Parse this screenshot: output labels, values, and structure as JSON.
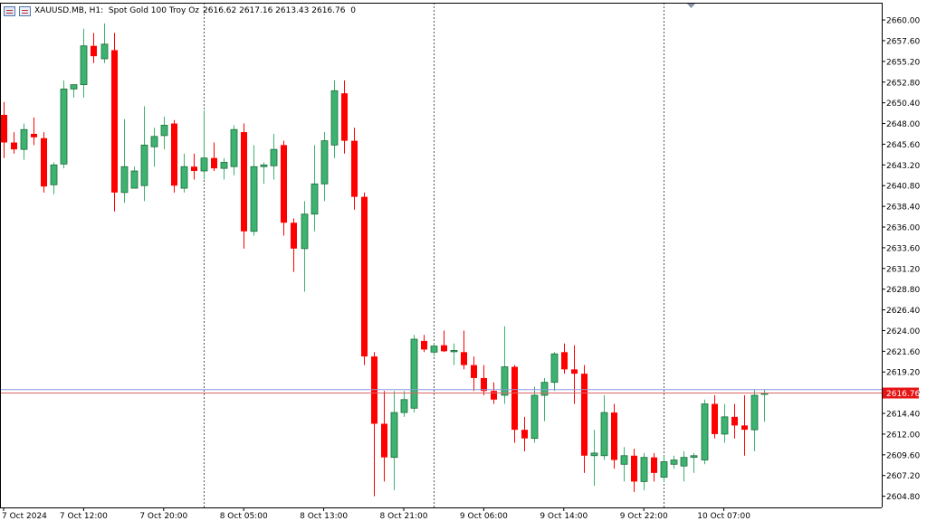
{
  "header": {
    "symbol": "XAUUSD.MB, H1:  Spot Gold 100 Troy Oz",
    "ohlc": "2616.62 2617.16 2613.43 2616.76  0"
  },
  "colors": {
    "bull": "#3cb371",
    "bear": "#ff0000",
    "bid_line": "#8899dd",
    "ask_line": "#dd6666",
    "price_tag_bg": "#e61414",
    "separator": "#555555",
    "axis": "#000000"
  },
  "icons": [
    "chart-window-icon",
    "chart-type-icon"
  ],
  "chart_data": {
    "type": "candlestick",
    "timeframe": "H1",
    "symbol": "XAUUSD.MB",
    "ylim": [
      2603.5,
      2662.0
    ],
    "y_ticks": [
      "2660.00",
      "2657.60",
      "2655.20",
      "2652.80",
      "2650.40",
      "2648.00",
      "2645.60",
      "2643.20",
      "2640.80",
      "2638.40",
      "2636.00",
      "2633.60",
      "2631.20",
      "2628.80",
      "2626.40",
      "2624.00",
      "2621.60",
      "2619.20",
      "2616.80",
      "2614.40",
      "2612.00",
      "2609.60",
      "2607.20",
      "2604.80"
    ],
    "x_ticks": [
      {
        "label": "7 Oct 2024",
        "bar": 0
      },
      {
        "label": "7 Oct 12:00",
        "bar": 8
      },
      {
        "label": "7 Oct 20:00",
        "bar": 16
      },
      {
        "label": "8 Oct 05:00",
        "bar": 24
      },
      {
        "label": "8 Oct 13:00",
        "bar": 32
      },
      {
        "label": "8 Oct 21:00",
        "bar": 40
      },
      {
        "label": "9 Oct 06:00",
        "bar": 48
      },
      {
        "label": "9 Oct 14:00",
        "bar": 56
      },
      {
        "label": "9 Oct 22:00",
        "bar": 64
      },
      {
        "label": "10 Oct 07:00",
        "bar": 72
      }
    ],
    "day_separators": [
      20,
      43,
      66
    ],
    "current_price": "2616.76",
    "bid": 2616.76,
    "ask": 2617.16,
    "candles": [
      {
        "o": 2649.0,
        "h": 2650.5,
        "l": 2644.0,
        "c": 2645.8
      },
      {
        "o": 2645.8,
        "h": 2647.0,
        "l": 2644.5,
        "c": 2645.0
      },
      {
        "o": 2645.0,
        "h": 2648.0,
        "l": 2643.8,
        "c": 2647.3
      },
      {
        "o": 2646.8,
        "h": 2648.7,
        "l": 2645.5,
        "c": 2646.4
      },
      {
        "o": 2646.3,
        "h": 2647.0,
        "l": 2640.0,
        "c": 2640.7
      },
      {
        "o": 2640.9,
        "h": 2643.5,
        "l": 2639.8,
        "c": 2643.2
      },
      {
        "o": 2643.3,
        "h": 2653.0,
        "l": 2642.8,
        "c": 2652.0
      },
      {
        "o": 2652.0,
        "h": 2652.3,
        "l": 2651.0,
        "c": 2652.5
      },
      {
        "o": 2652.5,
        "h": 2659.0,
        "l": 2651.0,
        "c": 2657.0
      },
      {
        "o": 2657.0,
        "h": 2658.5,
        "l": 2655.0,
        "c": 2655.8
      },
      {
        "o": 2655.5,
        "h": 2659.6,
        "l": 2655.0,
        "c": 2657.2
      },
      {
        "o": 2656.5,
        "h": 2658.5,
        "l": 2637.8,
        "c": 2640.0
      },
      {
        "o": 2640.0,
        "h": 2648.5,
        "l": 2638.8,
        "c": 2643.0
      },
      {
        "o": 2640.5,
        "h": 2643.0,
        "l": 2640.5,
        "c": 2642.5
      },
      {
        "o": 2640.8,
        "h": 2650.0,
        "l": 2639.0,
        "c": 2645.5
      },
      {
        "o": 2645.3,
        "h": 2647.5,
        "l": 2643.0,
        "c": 2646.5
      },
      {
        "o": 2646.6,
        "h": 2648.8,
        "l": 2645.0,
        "c": 2647.8
      },
      {
        "o": 2648.0,
        "h": 2648.4,
        "l": 2640.0,
        "c": 2640.8
      },
      {
        "o": 2640.5,
        "h": 2644.5,
        "l": 2640.0,
        "c": 2643.0
      },
      {
        "o": 2643.0,
        "h": 2644.5,
        "l": 2641.5,
        "c": 2642.5
      },
      {
        "o": 2642.5,
        "h": 2649.5,
        "l": 2641.5,
        "c": 2644.0
      },
      {
        "o": 2644.0,
        "h": 2645.8,
        "l": 2642.5,
        "c": 2642.8
      },
      {
        "o": 2642.8,
        "h": 2644.0,
        "l": 2641.5,
        "c": 2643.5
      },
      {
        "o": 2643.0,
        "h": 2647.8,
        "l": 2642.0,
        "c": 2647.3
      },
      {
        "o": 2647.0,
        "h": 2648.0,
        "l": 2633.5,
        "c": 2635.5
      },
      {
        "o": 2635.5,
        "h": 2645.5,
        "l": 2635.0,
        "c": 2643.0
      },
      {
        "o": 2643.0,
        "h": 2643.5,
        "l": 2641.0,
        "c": 2643.2
      },
      {
        "o": 2643.1,
        "h": 2646.8,
        "l": 2641.5,
        "c": 2645.0
      },
      {
        "o": 2645.5,
        "h": 2646.0,
        "l": 2635.0,
        "c": 2636.5
      },
      {
        "o": 2636.5,
        "h": 2637.0,
        "l": 2630.8,
        "c": 2633.5
      },
      {
        "o": 2633.5,
        "h": 2639.0,
        "l": 2628.5,
        "c": 2637.5
      },
      {
        "o": 2637.5,
        "h": 2645.5,
        "l": 2635.5,
        "c": 2641.0
      },
      {
        "o": 2641.0,
        "h": 2647.0,
        "l": 2639.0,
        "c": 2646.0
      },
      {
        "o": 2645.5,
        "h": 2653.0,
        "l": 2644.0,
        "c": 2651.8
      },
      {
        "o": 2651.5,
        "h": 2653.0,
        "l": 2644.5,
        "c": 2646.0
      },
      {
        "o": 2646.0,
        "h": 2647.5,
        "l": 2638.0,
        "c": 2639.5
      },
      {
        "o": 2639.5,
        "h": 2640.0,
        "l": 2620.0,
        "c": 2621.0
      },
      {
        "o": 2621.0,
        "h": 2621.5,
        "l": 2604.8,
        "c": 2613.2
      },
      {
        "o": 2613.2,
        "h": 2617.0,
        "l": 2606.5,
        "c": 2609.3
      },
      {
        "o": 2609.3,
        "h": 2617.0,
        "l": 2605.5,
        "c": 2614.5
      },
      {
        "o": 2614.5,
        "h": 2617.0,
        "l": 2614.0,
        "c": 2616.0
      },
      {
        "o": 2615.0,
        "h": 2623.5,
        "l": 2614.5,
        "c": 2623.0
      },
      {
        "o": 2622.8,
        "h": 2623.5,
        "l": 2621.5,
        "c": 2621.8
      },
      {
        "o": 2621.5,
        "h": 2622.5,
        "l": 2621.0,
        "c": 2622.2
      },
      {
        "o": 2622.3,
        "h": 2624.0,
        "l": 2621.5,
        "c": 2621.6
      },
      {
        "o": 2621.6,
        "h": 2622.5,
        "l": 2620.0,
        "c": 2621.7
      },
      {
        "o": 2621.5,
        "h": 2624.0,
        "l": 2619.5,
        "c": 2620.0
      },
      {
        "o": 2620.0,
        "h": 2621.0,
        "l": 2617.0,
        "c": 2618.5
      },
      {
        "o": 2618.5,
        "h": 2620.0,
        "l": 2616.5,
        "c": 2617.0
      },
      {
        "o": 2617.0,
        "h": 2618.0,
        "l": 2615.5,
        "c": 2616.0
      },
      {
        "o": 2616.5,
        "h": 2624.5,
        "l": 2615.5,
        "c": 2619.8
      },
      {
        "o": 2619.8,
        "h": 2620.0,
        "l": 2611.0,
        "c": 2612.5
      },
      {
        "o": 2612.5,
        "h": 2614.0,
        "l": 2610.0,
        "c": 2611.5
      },
      {
        "o": 2611.5,
        "h": 2617.5,
        "l": 2611.0,
        "c": 2616.5
      },
      {
        "o": 2616.5,
        "h": 2618.5,
        "l": 2613.5,
        "c": 2618.0
      },
      {
        "o": 2618.0,
        "h": 2621.5,
        "l": 2617.0,
        "c": 2621.3
      },
      {
        "o": 2621.5,
        "h": 2622.5,
        "l": 2619.0,
        "c": 2619.5
      },
      {
        "o": 2619.5,
        "h": 2622.3,
        "l": 2615.5,
        "c": 2619.0
      },
      {
        "o": 2619.0,
        "h": 2620.0,
        "l": 2607.5,
        "c": 2609.5
      },
      {
        "o": 2609.5,
        "h": 2612.5,
        "l": 2606.0,
        "c": 2609.8
      },
      {
        "o": 2609.5,
        "h": 2616.5,
        "l": 2609.0,
        "c": 2614.5
      },
      {
        "o": 2614.5,
        "h": 2615.5,
        "l": 2608.0,
        "c": 2609.0
      },
      {
        "o": 2608.5,
        "h": 2610.5,
        "l": 2606.5,
        "c": 2609.5
      },
      {
        "o": 2609.5,
        "h": 2610.3,
        "l": 2605.3,
        "c": 2606.5
      },
      {
        "o": 2606.5,
        "h": 2609.8,
        "l": 2605.5,
        "c": 2609.3
      },
      {
        "o": 2609.3,
        "h": 2609.8,
        "l": 2606.5,
        "c": 2607.5
      },
      {
        "o": 2607.0,
        "h": 2609.5,
        "l": 2606.5,
        "c": 2608.8
      },
      {
        "o": 2608.5,
        "h": 2609.5,
        "l": 2608.0,
        "c": 2609.0
      },
      {
        "o": 2608.3,
        "h": 2610.0,
        "l": 2606.5,
        "c": 2609.3
      },
      {
        "o": 2609.3,
        "h": 2609.8,
        "l": 2607.5,
        "c": 2609.5
      },
      {
        "o": 2609.0,
        "h": 2616.0,
        "l": 2608.5,
        "c": 2615.5
      },
      {
        "o": 2615.5,
        "h": 2616.5,
        "l": 2611.5,
        "c": 2612.0
      },
      {
        "o": 2612.0,
        "h": 2615.5,
        "l": 2611.0,
        "c": 2614.0
      },
      {
        "o": 2614.0,
        "h": 2615.5,
        "l": 2611.5,
        "c": 2613.0
      },
      {
        "o": 2613.0,
        "h": 2616.5,
        "l": 2609.5,
        "c": 2612.5
      },
      {
        "o": 2612.5,
        "h": 2617.2,
        "l": 2610.0,
        "c": 2616.5
      },
      {
        "o": 2616.62,
        "h": 2617.16,
        "l": 2613.43,
        "c": 2616.76
      }
    ]
  }
}
